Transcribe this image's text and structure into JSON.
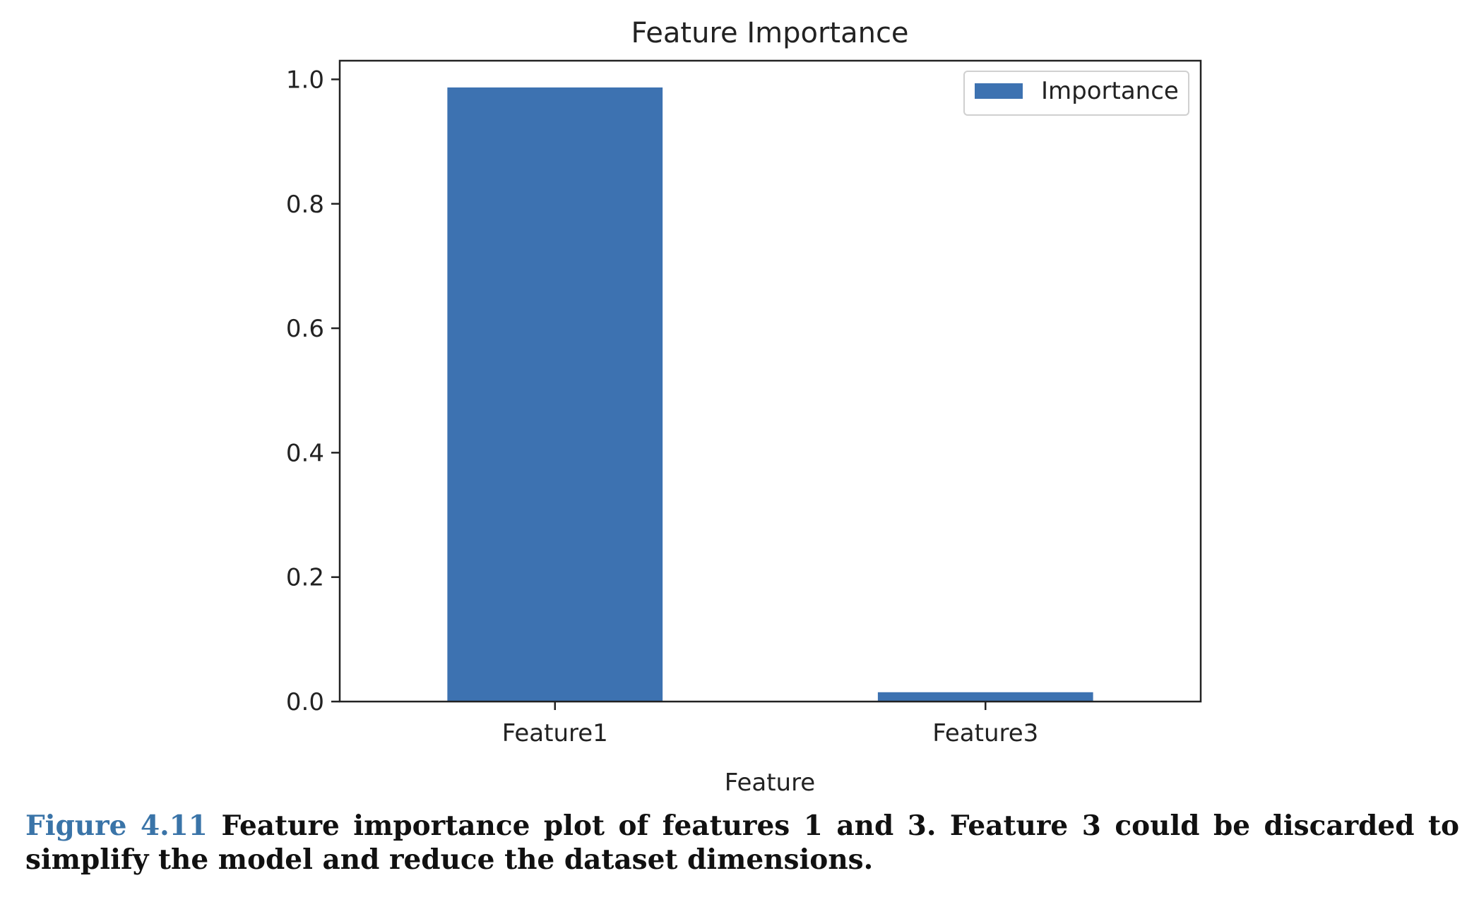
{
  "chart_data": {
    "type": "bar",
    "title": "Feature Importance",
    "xlabel": "Feature",
    "ylabel": "",
    "categories": [
      "Feature1",
      "Feature3"
    ],
    "series": [
      {
        "name": "Importance",
        "values": [
          0.987,
          0.015
        ]
      }
    ],
    "ylim": [
      0,
      1.03
    ],
    "yticks": [
      {
        "value": 0.0,
        "label": "0.0"
      },
      {
        "value": 0.2,
        "label": "0.2"
      },
      {
        "value": 0.4,
        "label": "0.4"
      },
      {
        "value": 0.6,
        "label": "0.6"
      },
      {
        "value": 0.8,
        "label": "0.8"
      },
      {
        "value": 1.0,
        "label": "1.0"
      }
    ],
    "grid": false,
    "legend_position": "top-right",
    "bar_color": "#3d72b1"
  },
  "caption": {
    "label": "Figure 4.11",
    "text": "Feature importance plot of features 1 and 3. Feature 3 could be discarded to simplify the model and reduce the dataset dimensions."
  }
}
